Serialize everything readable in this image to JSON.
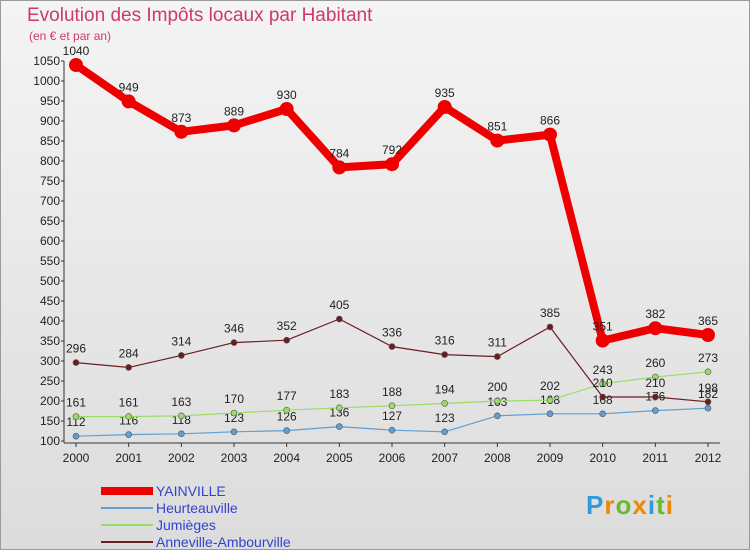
{
  "chart_data": {
    "type": "line",
    "title": "Evolution des Impôts locaux par Habitant",
    "subtitle": "(en € et par an)",
    "x": [
      "2000",
      "2001",
      "2002",
      "2003",
      "2004",
      "2005",
      "2006",
      "2007",
      "2008",
      "2009",
      "2010",
      "2011",
      "2012"
    ],
    "ylim": [
      100,
      1050
    ],
    "yticks": [
      100,
      150,
      200,
      250,
      300,
      350,
      400,
      450,
      500,
      550,
      600,
      650,
      700,
      750,
      800,
      850,
      900,
      950,
      1000,
      1050
    ],
    "grid": false,
    "legend_position": "bottom-left",
    "series": [
      {
        "name": "YAINVILLE",
        "color": "#ee0000",
        "values": [
          1040,
          949,
          873,
          889,
          930,
          784,
          792,
          935,
          851,
          866,
          351,
          382,
          365
        ]
      },
      {
        "name": "Heurteauville",
        "color": "#5f9fd2",
        "values": [
          112,
          116,
          118,
          123,
          126,
          136,
          127,
          123,
          163,
          168,
          168,
          176,
          182
        ]
      },
      {
        "name": "Jumièges",
        "color": "#99dd66",
        "values": [
          161,
          161,
          163,
          170,
          177,
          183,
          188,
          194,
          200,
          202,
          243,
          260,
          273
        ]
      },
      {
        "name": "Anneville-Ambourville",
        "color": "#6b1c20",
        "values": [
          296,
          284,
          314,
          346,
          352,
          405,
          336,
          316,
          311,
          385,
          210,
          210,
          198
        ]
      }
    ]
  },
  "logo": {
    "text": "Proxiti",
    "letter_colors": [
      "#3399dd",
      "#ee8800",
      "#66bb33",
      "#ee8800",
      "#3399dd",
      "#66bb33",
      "#ee8800"
    ]
  }
}
